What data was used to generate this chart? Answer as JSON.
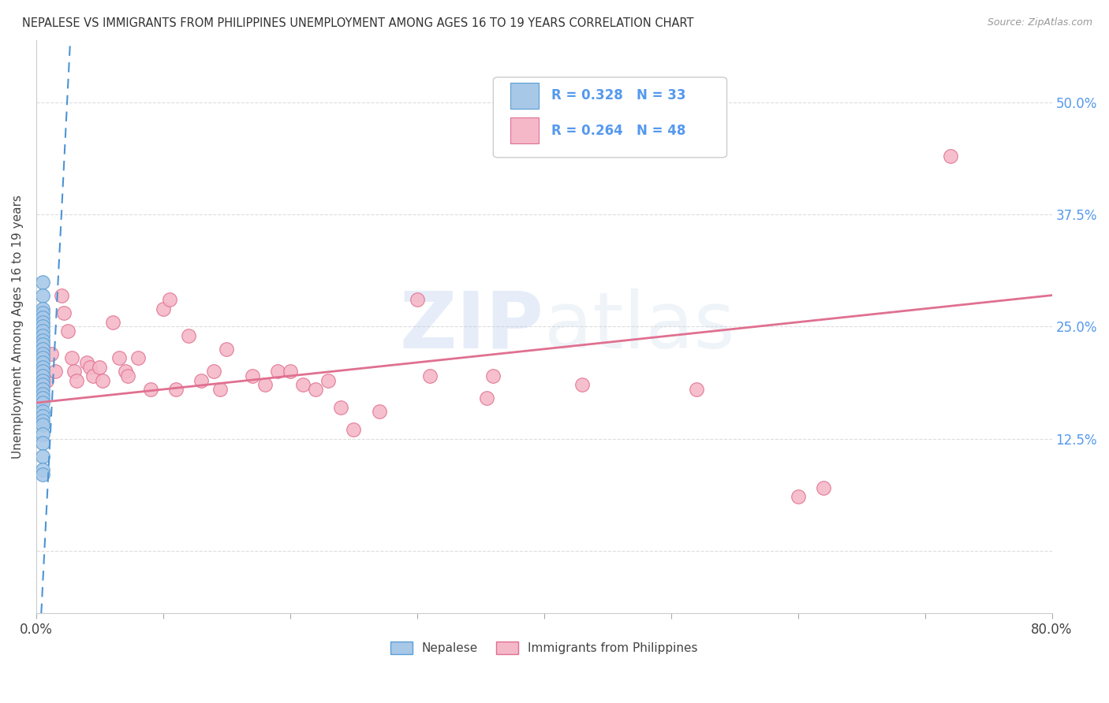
{
  "title": "NEPALESE VS IMMIGRANTS FROM PHILIPPINES UNEMPLOYMENT AMONG AGES 16 TO 19 YEARS CORRELATION CHART",
  "source": "Source: ZipAtlas.com",
  "ylabel": "Unemployment Among Ages 16 to 19 years",
  "xlim": [
    0.0,
    0.8
  ],
  "ylim": [
    -0.07,
    0.57
  ],
  "xticks": [
    0.0,
    0.1,
    0.2,
    0.3,
    0.4,
    0.5,
    0.6,
    0.7,
    0.8
  ],
  "xticklabels": [
    "0.0%",
    "",
    "",
    "",
    "",
    "",
    "",
    "",
    "80.0%"
  ],
  "ytick_positions": [
    0.0,
    0.125,
    0.25,
    0.375,
    0.5
  ],
  "ytick_labels_right": [
    "",
    "12.5%",
    "25.0%",
    "37.5%",
    "50.0%"
  ],
  "blue_scatter_color": "#a8c8e8",
  "blue_scatter_edge": "#5a9fd4",
  "pink_scatter_color": "#f5b8c8",
  "pink_scatter_edge": "#e07090",
  "blue_line_color": "#4d94d4",
  "pink_line_color": "#e07090",
  "blue_scatter_x": [
    0.005,
    0.005,
    0.005,
    0.005,
    0.005,
    0.005,
    0.005,
    0.005,
    0.005,
    0.005,
    0.005,
    0.005,
    0.005,
    0.005,
    0.005,
    0.005,
    0.005,
    0.005,
    0.005,
    0.005,
    0.005,
    0.005,
    0.005,
    0.005,
    0.005,
    0.005,
    0.005,
    0.005,
    0.005,
    0.005,
    0.005,
    0.005,
    0.005
  ],
  "blue_scatter_y": [
    0.3,
    0.285,
    0.27,
    0.265,
    0.26,
    0.255,
    0.25,
    0.245,
    0.24,
    0.235,
    0.23,
    0.225,
    0.22,
    0.215,
    0.21,
    0.205,
    0.2,
    0.195,
    0.19,
    0.185,
    0.18,
    0.175,
    0.17,
    0.165,
    0.155,
    0.15,
    0.145,
    0.14,
    0.13,
    0.12,
    0.105,
    0.09,
    0.085
  ],
  "pink_scatter_x": [
    0.005,
    0.008,
    0.012,
    0.015,
    0.02,
    0.022,
    0.025,
    0.028,
    0.03,
    0.032,
    0.04,
    0.042,
    0.045,
    0.05,
    0.052,
    0.06,
    0.065,
    0.07,
    0.072,
    0.08,
    0.09,
    0.1,
    0.105,
    0.11,
    0.12,
    0.13,
    0.14,
    0.145,
    0.15,
    0.17,
    0.18,
    0.19,
    0.2,
    0.21,
    0.22,
    0.23,
    0.24,
    0.25,
    0.27,
    0.3,
    0.31,
    0.355,
    0.36,
    0.43,
    0.52,
    0.6,
    0.62,
    0.72
  ],
  "pink_scatter_y": [
    0.2,
    0.19,
    0.22,
    0.2,
    0.285,
    0.265,
    0.245,
    0.215,
    0.2,
    0.19,
    0.21,
    0.205,
    0.195,
    0.205,
    0.19,
    0.255,
    0.215,
    0.2,
    0.195,
    0.215,
    0.18,
    0.27,
    0.28,
    0.18,
    0.24,
    0.19,
    0.2,
    0.18,
    0.225,
    0.195,
    0.185,
    0.2,
    0.2,
    0.185,
    0.18,
    0.19,
    0.16,
    0.135,
    0.155,
    0.28,
    0.195,
    0.17,
    0.195,
    0.185,
    0.18,
    0.06,
    0.07,
    0.44
  ],
  "blue_trend_x": [
    0.01,
    0.025
  ],
  "blue_trend_y": [
    0.1,
    0.52
  ],
  "pink_trend_x": [
    0.0,
    0.8
  ],
  "pink_trend_y": [
    0.165,
    0.285
  ],
  "watermark_text": "ZIPatlas",
  "watermark_zip_color": "#b8d4f0",
  "watermark_atlas_color": "#c8d8e8",
  "bg_color": "#ffffff",
  "grid_color": "#dddddd",
  "right_tick_color": "#5599ee",
  "legend_text_color": "#5599ee",
  "legend_r1": "R = 0.328",
  "legend_n1": "N = 33",
  "legend_r2": "R = 0.264",
  "legend_n2": "N = 48",
  "bottom_label_blue": "Nepalese",
  "bottom_label_pink": "Immigrants from Philippines"
}
